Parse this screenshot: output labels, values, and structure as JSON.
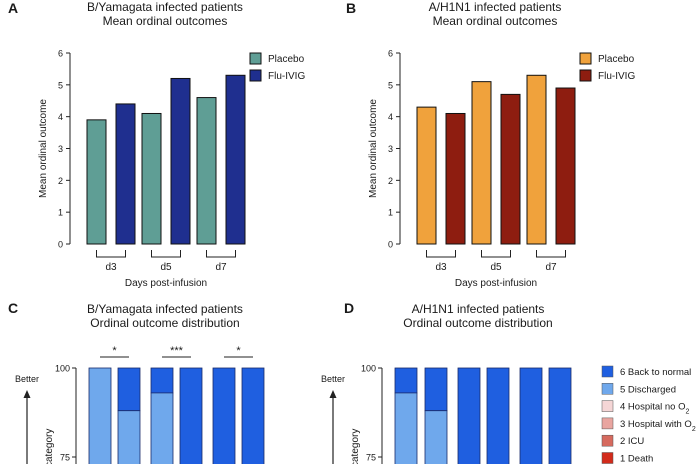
{
  "panels": {
    "A": {
      "letter": "A",
      "title_line1": "B/Yamagata infected patients",
      "title_line2": "Mean ordinal outcomes"
    },
    "B": {
      "letter": "B",
      "title_line1": "A/H1N1 infected patients",
      "title_line2": "Mean ordinal outcomes"
    },
    "C": {
      "letter": "C",
      "title_line1": "B/Yamagata infected patients",
      "title_line2": "Ordinal outcome distribution"
    },
    "D": {
      "letter": "D",
      "title_line1": "A/H1N1 infected patients",
      "title_line2": "Ordinal outcome distribution"
    }
  },
  "chart_data": [
    {
      "panel": "A",
      "type": "bar",
      "categories": [
        "d3",
        "d5",
        "d7"
      ],
      "series": [
        {
          "name": "Placebo",
          "values": [
            3.9,
            4.1,
            4.6
          ],
          "color": "#5f9e95"
        },
        {
          "name": "Flu-IVIG",
          "values": [
            4.4,
            5.2,
            5.3
          ],
          "color": "#1f2f8f"
        }
      ],
      "ylabel": "Mean ordinal outcome",
      "xlabel": "Days post-infusion",
      "ylim": [
        0,
        6
      ],
      "yticks": [
        "0",
        "1",
        "2",
        "3",
        "4",
        "5",
        "6"
      ],
      "legend": "top-right"
    },
    {
      "panel": "B",
      "type": "bar",
      "categories": [
        "d3",
        "d5",
        "d7"
      ],
      "series": [
        {
          "name": "Placebo",
          "values": [
            4.3,
            5.1,
            5.3
          ],
          "color": "#f0a23c"
        },
        {
          "name": "Flu-IVIG",
          "values": [
            4.1,
            4.7,
            4.9
          ],
          "color": "#8e1d10"
        }
      ],
      "ylabel": "Mean ordinal outcome",
      "xlabel": "Days post-infusion",
      "ylim": [
        0,
        6
      ],
      "yticks": [
        "0",
        "1",
        "2",
        "3",
        "4",
        "5",
        "6"
      ],
      "legend": "top-right"
    },
    {
      "panel": "C",
      "type": "bar",
      "stacked": true,
      "ylabel": "n category",
      "ylim_visible": [
        62,
        100
      ],
      "yticks": [
        "100",
        "75"
      ],
      "arrow_label": "Better",
      "significance": [
        "*",
        "***",
        "*"
      ],
      "bars": [
        {
          "back_to_normal": 0,
          "discharged": 69,
          "hospital_no_o2": 31
        },
        {
          "back_to_normal": 12,
          "discharged": 88,
          "hospital_no_o2": 0
        },
        {
          "back_to_normal": 7,
          "discharged": 93,
          "hospital_no_o2": 0
        },
        {
          "back_to_normal": 33,
          "discharged": 67,
          "hospital_no_o2": 0
        },
        {
          "back_to_normal": 38,
          "discharged": 62,
          "hospital_no_o2": 0
        },
        {
          "back_to_normal": 100,
          "discharged": 0,
          "hospital_no_o2": 0
        }
      ]
    },
    {
      "panel": "D",
      "type": "bar",
      "stacked": true,
      "ylabel": "n category",
      "ylim_visible": [
        62,
        100
      ],
      "yticks": [
        "100",
        "75"
      ],
      "arrow_label": "Better",
      "bars": [
        {
          "back_to_normal": 7,
          "discharged": 93,
          "hospital_no_o2": 0
        },
        {
          "back_to_normal": 12,
          "discharged": 51,
          "hospital_no_o2": 37
        },
        {
          "back_to_normal": 100,
          "discharged": 0,
          "hospital_no_o2": 0
        },
        {
          "back_to_normal": 29,
          "discharged": 71,
          "hospital_no_o2": 0
        },
        {
          "back_to_normal": 100,
          "discharged": 0,
          "hospital_no_o2": 0
        },
        {
          "back_to_normal": 100,
          "discharged": 0,
          "hospital_no_o2": 0
        }
      ],
      "legend": [
        {
          "label": "6 Back to normal",
          "color": "#1f5fe0"
        },
        {
          "label": "5 Discharged",
          "color": "#6fa8ec"
        },
        {
          "label": "4 Hospital no O",
          "sub": "2",
          "color": "#f5d6d6"
        },
        {
          "label": "3 Hospital with O",
          "sub": "2",
          "color": "#e9a5a0"
        },
        {
          "label": "2 ICU",
          "color": "#d66a5e"
        },
        {
          "label": "1 Death",
          "color": "#d22b1b"
        }
      ]
    }
  ]
}
